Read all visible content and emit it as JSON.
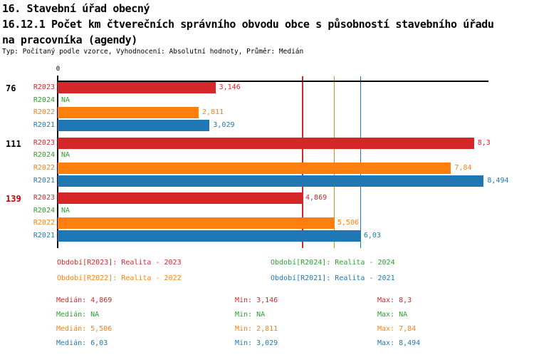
{
  "header": {
    "title_line1": "16. Stavební úřad obecný",
    "title_line2": "16.12.1 Počet km čtverečních správního obvodu obce s působností stavebního úřadu",
    "title_line3": "na pracovníka (agendy)",
    "subtitle": "Typ: Počítaný podle vzorce, Vyhodnocení: Absolutní hodnoty, Průměr: Medián"
  },
  "colors": {
    "R2023": "#d62728",
    "R2024": "#2ca02c",
    "R2022": "#ff7f0e",
    "R2021": "#1f77b4",
    "group_label_default": "#000000",
    "group_label_highlight": "#cc0000",
    "axis": "#000000"
  },
  "chart_data": {
    "type": "bar",
    "orientation": "horizontal",
    "title": "16.12.1 Počet km čtverečních správního obvodu obce s působností stavebního úřadu na pracovníka (agendy)",
    "xlabel": "",
    "ylabel": "",
    "xlim": [
      0,
      8.6
    ],
    "x_tick_labels": [
      "0"
    ],
    "grid": false,
    "series_order": [
      "R2023",
      "R2024",
      "R2022",
      "R2021"
    ],
    "groups": [
      {
        "label": "76",
        "label_color_key": "group_label_default",
        "bars": [
          {
            "series": "R2023",
            "value": 3.146,
            "display": "3,146"
          },
          {
            "series": "R2024",
            "value": null,
            "display": "NA"
          },
          {
            "series": "R2022",
            "value": 2.811,
            "display": "2,811"
          },
          {
            "series": "R2021",
            "value": 3.029,
            "display": "3,029"
          }
        ]
      },
      {
        "label": "111",
        "label_color_key": "group_label_default",
        "bars": [
          {
            "series": "R2023",
            "value": 8.3,
            "display": "8,3"
          },
          {
            "series": "R2024",
            "value": null,
            "display": "NA"
          },
          {
            "series": "R2022",
            "value": 7.84,
            "display": "7,84"
          },
          {
            "series": "R2021",
            "value": 8.494,
            "display": "8,494"
          }
        ]
      },
      {
        "label": "139",
        "label_color_key": "group_label_highlight",
        "bars": [
          {
            "series": "R2023",
            "value": 4.869,
            "display": "4,869"
          },
          {
            "series": "R2024",
            "value": null,
            "display": "NA"
          },
          {
            "series": "R2022",
            "value": 5.506,
            "display": "5,506"
          },
          {
            "series": "R2021",
            "value": 6.03,
            "display": "6,03"
          }
        ]
      }
    ],
    "median_lines": [
      {
        "series": "R2023",
        "value": 4.869
      },
      {
        "series": "R2022",
        "value": 5.506
      },
      {
        "series": "R2021",
        "value": 6.03
      }
    ]
  },
  "legend": {
    "items": [
      {
        "series": "R2023",
        "label": "Období[R2023]: Realita - 2023"
      },
      {
        "series": "R2024",
        "label": "Období[R2024]: Realita - 2024"
      },
      {
        "series": "R2022",
        "label": "Období[R2022]: Realita - 2022"
      },
      {
        "series": "R2021",
        "label": "Období[R2021]: Realita - 2021"
      }
    ]
  },
  "stats": {
    "rows": [
      {
        "series": "R2023",
        "median": "Medián: 4,869",
        "min": "Min: 3,146",
        "max": "Max: 8,3"
      },
      {
        "series": "R2024",
        "median": "Medián: NA",
        "min": "Min: NA",
        "max": "Max: NA"
      },
      {
        "series": "R2022",
        "median": "Medián: 5,506",
        "min": "Min: 2,811",
        "max": "Max: 7,84"
      },
      {
        "series": "R2021",
        "median": "Medián: 6,03",
        "min": "Min: 3,029",
        "max": "Max: 8,494"
      }
    ]
  }
}
